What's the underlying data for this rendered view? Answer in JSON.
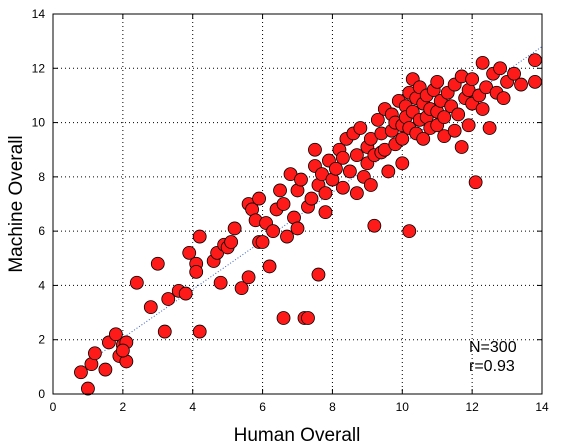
{
  "chart_data": {
    "type": "scatter",
    "title": "",
    "xlabel": "Human Overall",
    "ylabel": "Machine Overall",
    "xlim": [
      0,
      14
    ],
    "ylim": [
      0,
      14
    ],
    "xticks": [
      0,
      2,
      4,
      6,
      8,
      10,
      12,
      14
    ],
    "yticks": [
      0,
      2,
      4,
      6,
      8,
      10,
      12,
      14
    ],
    "grid": true,
    "marker_color": "#ff1a1a",
    "fit_line_color": "#3a5fcd",
    "fit_line": {
      "x": [
        0.7,
        14
      ],
      "y": [
        0.9,
        12.8
      ]
    },
    "annotations": [
      "N=300",
      "r=0.93"
    ],
    "series": [
      {
        "points": [
          [
            0.8,
            0.8
          ],
          [
            1.0,
            0.2
          ],
          [
            1.1,
            1.1
          ],
          [
            1.2,
            1.5
          ],
          [
            1.5,
            0.9
          ],
          [
            1.6,
            1.9
          ],
          [
            1.8,
            2.2
          ],
          [
            1.9,
            1.4
          ],
          [
            2.0,
            1.8
          ],
          [
            2.1,
            1.2
          ],
          [
            2.1,
            1.9
          ],
          [
            2.0,
            1.6
          ],
          [
            2.4,
            4.1
          ],
          [
            2.8,
            3.2
          ],
          [
            3.0,
            4.8
          ],
          [
            3.2,
            2.3
          ],
          [
            3.3,
            3.5
          ],
          [
            3.6,
            3.8
          ],
          [
            3.8,
            3.7
          ],
          [
            3.9,
            5.2
          ],
          [
            4.1,
            4.8
          ],
          [
            4.1,
            4.5
          ],
          [
            4.2,
            5.8
          ],
          [
            4.2,
            2.3
          ],
          [
            4.6,
            4.9
          ],
          [
            4.7,
            5.2
          ],
          [
            4.8,
            4.1
          ],
          [
            4.9,
            5.5
          ],
          [
            5.0,
            5.4
          ],
          [
            5.1,
            5.6
          ],
          [
            5.2,
            6.1
          ],
          [
            5.4,
            3.9
          ],
          [
            5.6,
            4.3
          ],
          [
            5.6,
            7.0
          ],
          [
            5.7,
            6.8
          ],
          [
            5.8,
            6.4
          ],
          [
            5.9,
            5.6
          ],
          [
            5.9,
            7.2
          ],
          [
            6.0,
            5.6
          ],
          [
            6.1,
            6.3
          ],
          [
            6.2,
            4.7
          ],
          [
            6.3,
            6.0
          ],
          [
            6.4,
            6.8
          ],
          [
            6.5,
            7.5
          ],
          [
            6.6,
            7.0
          ],
          [
            6.6,
            2.8
          ],
          [
            6.7,
            5.8
          ],
          [
            6.8,
            8.1
          ],
          [
            6.9,
            6.5
          ],
          [
            7.0,
            7.5
          ],
          [
            7.0,
            6.1
          ],
          [
            7.1,
            7.9
          ],
          [
            7.2,
            2.8
          ],
          [
            7.3,
            6.9
          ],
          [
            7.3,
            2.8
          ],
          [
            7.4,
            7.2
          ],
          [
            7.5,
            8.4
          ],
          [
            7.5,
            9.0
          ],
          [
            7.6,
            7.7
          ],
          [
            7.6,
            4.4
          ],
          [
            7.7,
            8.1
          ],
          [
            7.8,
            7.4
          ],
          [
            7.8,
            6.7
          ],
          [
            7.9,
            8.6
          ],
          [
            8.0,
            7.9
          ],
          [
            8.1,
            8.3
          ],
          [
            8.2,
            9.0
          ],
          [
            8.3,
            8.7
          ],
          [
            8.3,
            7.6
          ],
          [
            8.4,
            9.4
          ],
          [
            8.5,
            8.2
          ],
          [
            8.6,
            9.6
          ],
          [
            8.7,
            8.8
          ],
          [
            8.7,
            7.4
          ],
          [
            8.8,
            9.8
          ],
          [
            8.9,
            8.0
          ],
          [
            9.0,
            9.1
          ],
          [
            9.0,
            8.5
          ],
          [
            9.1,
            9.4
          ],
          [
            9.1,
            7.7
          ],
          [
            9.2,
            6.2
          ],
          [
            9.2,
            8.8
          ],
          [
            9.3,
            10.1
          ],
          [
            9.4,
            9.6
          ],
          [
            9.4,
            8.9
          ],
          [
            9.5,
            10.5
          ],
          [
            9.5,
            9.0
          ],
          [
            9.6,
            8.2
          ],
          [
            9.7,
            10.3
          ],
          [
            9.7,
            9.7
          ],
          [
            9.8,
            10.0
          ],
          [
            9.8,
            9.2
          ],
          [
            9.9,
            10.8
          ],
          [
            10.0,
            9.9
          ],
          [
            10.0,
            9.4
          ],
          [
            10.0,
            8.5
          ],
          [
            10.1,
            10.6
          ],
          [
            10.1,
            10.2
          ],
          [
            10.2,
            11.1
          ],
          [
            10.2,
            9.8
          ],
          [
            10.2,
            6.0
          ],
          [
            10.3,
            11.6
          ],
          [
            10.3,
            10.4
          ],
          [
            10.4,
            9.6
          ],
          [
            10.4,
            10.9
          ],
          [
            10.5,
            10.1
          ],
          [
            10.5,
            11.3
          ],
          [
            10.6,
            9.4
          ],
          [
            10.6,
            10.7
          ],
          [
            10.7,
            10.2
          ],
          [
            10.7,
            11.0
          ],
          [
            10.8,
            9.8
          ],
          [
            10.8,
            10.5
          ],
          [
            10.9,
            11.2
          ],
          [
            11.0,
            9.9
          ],
          [
            11.0,
            10.4
          ],
          [
            11.0,
            11.5
          ],
          [
            11.1,
            10.8
          ],
          [
            11.2,
            9.5
          ],
          [
            11.2,
            10.2
          ],
          [
            11.3,
            11.1
          ],
          [
            11.4,
            10.6
          ],
          [
            11.5,
            11.4
          ],
          [
            11.5,
            9.7
          ],
          [
            11.6,
            10.3
          ],
          [
            11.7,
            11.7
          ],
          [
            11.7,
            9.1
          ],
          [
            11.8,
            10.9
          ],
          [
            11.9,
            11.2
          ],
          [
            11.9,
            9.9
          ],
          [
            12.0,
            10.7
          ],
          [
            12.0,
            11.6
          ],
          [
            12.1,
            7.8
          ],
          [
            12.2,
            11.0
          ],
          [
            12.3,
            12.2
          ],
          [
            12.3,
            10.5
          ],
          [
            12.4,
            11.3
          ],
          [
            12.5,
            9.8
          ],
          [
            12.6,
            11.8
          ],
          [
            12.7,
            11.1
          ],
          [
            12.8,
            12.0
          ],
          [
            12.9,
            10.9
          ],
          [
            13.0,
            11.5
          ],
          [
            13.2,
            11.8
          ],
          [
            13.4,
            11.4
          ],
          [
            13.8,
            12.3
          ],
          [
            13.8,
            11.5
          ]
        ]
      }
    ]
  }
}
